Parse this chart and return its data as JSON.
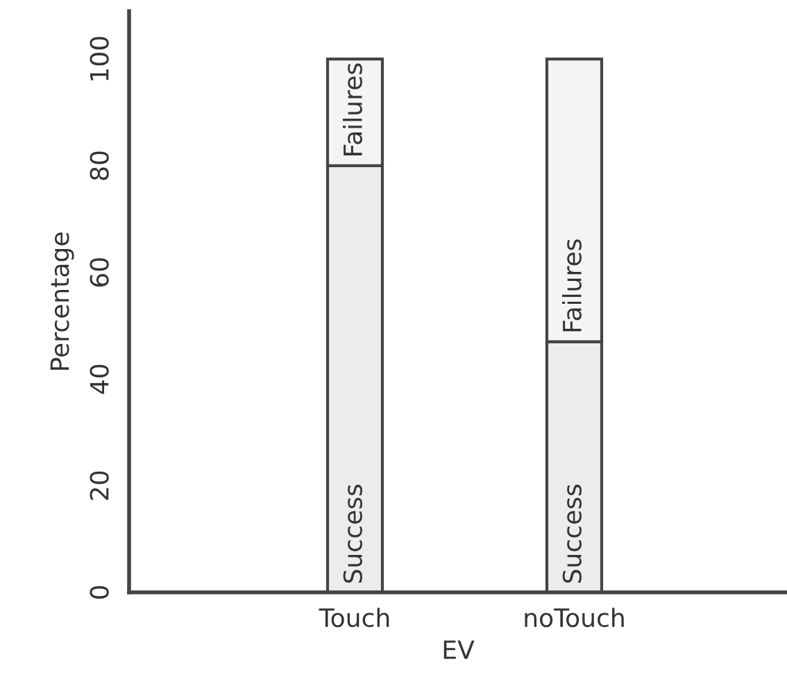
{
  "chart_data": {
    "type": "bar",
    "stacked": true,
    "xlabel": "EV",
    "ylabel": "Percentage",
    "categories": [
      "Touch",
      "noTouch"
    ],
    "series": [
      {
        "name": "Success",
        "color": "#ececec",
        "values": [
          80,
          47
        ]
      },
      {
        "name": "Failures",
        "color": "#f4f4f4",
        "values": [
          20,
          53
        ]
      }
    ],
    "ylim": [
      0,
      109
    ],
    "yticks": [
      0,
      20,
      40,
      60,
      80,
      100
    ],
    "grid": false,
    "legend": false
  }
}
